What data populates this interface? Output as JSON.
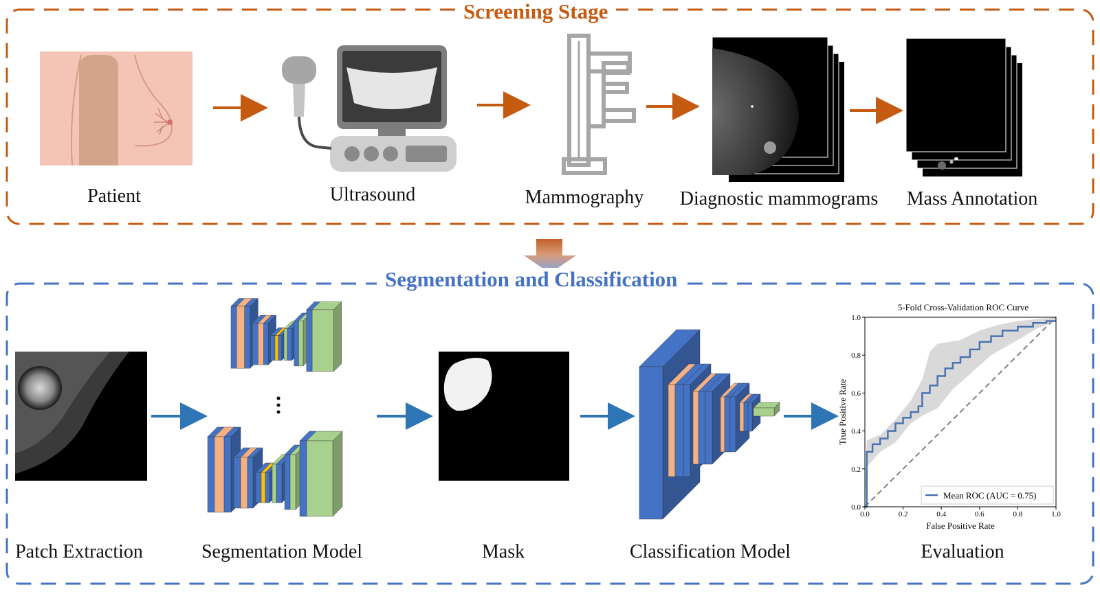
{
  "screening": {
    "title": "Screening Stage",
    "color": "#C55A11",
    "steps": [
      "Patient",
      "Ultrasound",
      "Mammography",
      "Diagnostic mammograms",
      "Mass Annotation"
    ]
  },
  "segmentation": {
    "title": "Segmentation and Classification",
    "color": "#4472C4",
    "steps": [
      "Patch Extraction",
      "Segmentation Model",
      "Mask",
      "Classification Model",
      "Evaluation"
    ]
  },
  "colors": {
    "blue_block": "#4472C4",
    "orange_block": "#F4B183",
    "yellow_block": "#FFC000",
    "green_block": "#A9D18E",
    "arrow_orange": "#C55A11",
    "arrow_blue": "#2E75B6"
  },
  "chart_data": {
    "type": "line",
    "title": "5-Fold Cross-Validation ROC Curve",
    "xlabel": "False Positive Rate",
    "ylabel": "True Positive Rate",
    "xlim": [
      0,
      1
    ],
    "ylim": [
      0,
      1
    ],
    "xticks": [
      "0.0",
      "0.2",
      "0.4",
      "0.6",
      "0.8",
      "1.0"
    ],
    "yticks": [
      "0.0",
      "0.2",
      "0.4",
      "0.6",
      "0.8",
      "1.0"
    ],
    "legend": "lower-right",
    "series": [
      {
        "name": "Mean ROC (AUC = 0.75)",
        "x": [
          0,
          0.01,
          0.01,
          0.04,
          0.04,
          0.08,
          0.08,
          0.12,
          0.12,
          0.16,
          0.16,
          0.2,
          0.2,
          0.24,
          0.24,
          0.28,
          0.28,
          0.3,
          0.3,
          0.34,
          0.34,
          0.38,
          0.38,
          0.42,
          0.42,
          0.46,
          0.46,
          0.5,
          0.5,
          0.55,
          0.55,
          0.6,
          0.6,
          0.66,
          0.66,
          0.72,
          0.72,
          0.8,
          0.8,
          0.88,
          0.88,
          0.95,
          0.95,
          1.0
        ],
        "y": [
          0,
          0,
          0.29,
          0.29,
          0.33,
          0.33,
          0.36,
          0.36,
          0.4,
          0.4,
          0.44,
          0.44,
          0.47,
          0.47,
          0.5,
          0.5,
          0.53,
          0.53,
          0.6,
          0.6,
          0.64,
          0.64,
          0.69,
          0.69,
          0.73,
          0.73,
          0.76,
          0.76,
          0.79,
          0.79,
          0.83,
          0.83,
          0.87,
          0.87,
          0.9,
          0.9,
          0.93,
          0.93,
          0.95,
          0.95,
          0.97,
          0.97,
          0.98,
          0.98
        ]
      },
      {
        "name": "",
        "x": [
          0,
          1
        ],
        "y": [
          0,
          1
        ]
      }
    ],
    "band_upper": [
      [
        0,
        0.1
      ],
      [
        0.01,
        0.35
      ],
      [
        0.08,
        0.38
      ],
      [
        0.16,
        0.46
      ],
      [
        0.24,
        0.56
      ],
      [
        0.3,
        0.67
      ],
      [
        0.34,
        0.82
      ],
      [
        0.38,
        0.86
      ],
      [
        0.5,
        0.88
      ],
      [
        0.6,
        0.93
      ],
      [
        0.7,
        0.96
      ],
      [
        0.8,
        0.98
      ],
      [
        0.9,
        0.99
      ],
      [
        1.0,
        1.0
      ]
    ],
    "band_lower": [
      [
        0,
        0
      ],
      [
        0.01,
        0.21
      ],
      [
        0.08,
        0.29
      ],
      [
        0.16,
        0.34
      ],
      [
        0.24,
        0.44
      ],
      [
        0.3,
        0.48
      ],
      [
        0.38,
        0.52
      ],
      [
        0.46,
        0.62
      ],
      [
        0.55,
        0.7
      ],
      [
        0.66,
        0.8
      ],
      [
        0.8,
        0.88
      ],
      [
        0.9,
        0.94
      ],
      [
        1.0,
        0.98
      ]
    ]
  }
}
